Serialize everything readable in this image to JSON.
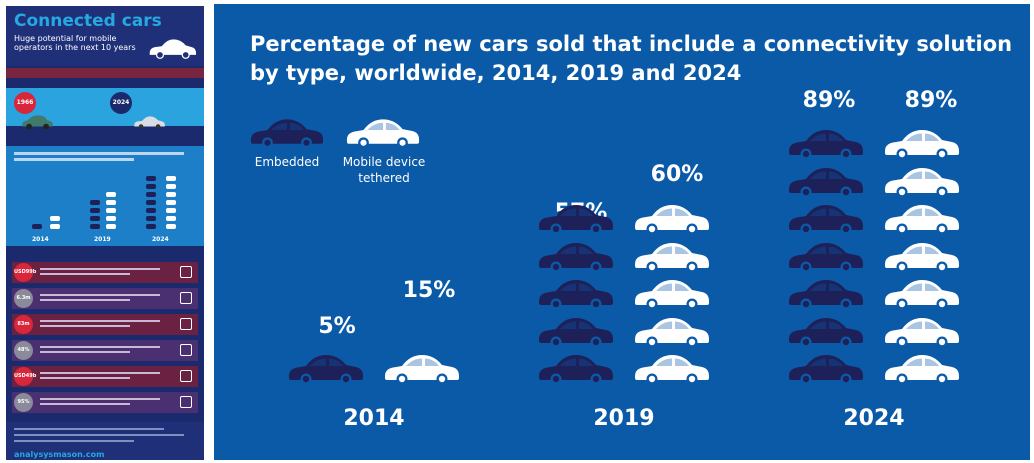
{
  "thumbnail": {
    "title": "Connected cars",
    "subtitle": "Huge potential for mobile operators in the next 10 years",
    "badge_left": "1966",
    "badge_right": "2024",
    "stat_labels": [
      "USD99b",
      "6.3m",
      "83m",
      "48%",
      "USD49b",
      "95%"
    ],
    "url": "analysysmason.com"
  },
  "chart_data": {
    "type": "bar",
    "title": "Percentage of new cars sold that include a connectivity solution by type, worldwide, 2014, 2019 and 2024",
    "categories": [
      "2014",
      "2019",
      "2024"
    ],
    "series": [
      {
        "name": "Embedded",
        "values": [
          5,
          57,
          89
        ],
        "color": "#1e2159"
      },
      {
        "name": "Mobile device tethered",
        "values": [
          15,
          60,
          89
        ],
        "color": "#ffffff"
      }
    ],
    "value_labels": {
      "Embedded": [
        "5%",
        "57%",
        "89%"
      ],
      "Mobile device tethered": [
        "15%",
        "60%",
        "89%"
      ]
    },
    "unit_percent_per_car": 12.5,
    "legend_position": "top-left",
    "icon": "car-icon"
  }
}
